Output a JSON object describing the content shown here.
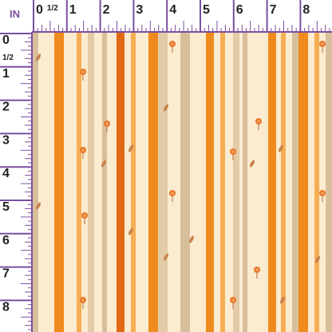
{
  "ruler": {
    "unit": "IN",
    "top_labels": [
      "0",
      "1/2",
      "1",
      "2",
      "3",
      "4",
      "5",
      "6",
      "7",
      "8"
    ],
    "left_labels": [
      "0",
      "1/2",
      "1",
      "2",
      "3",
      "4",
      "5",
      "6",
      "7",
      "8"
    ]
  }
}
